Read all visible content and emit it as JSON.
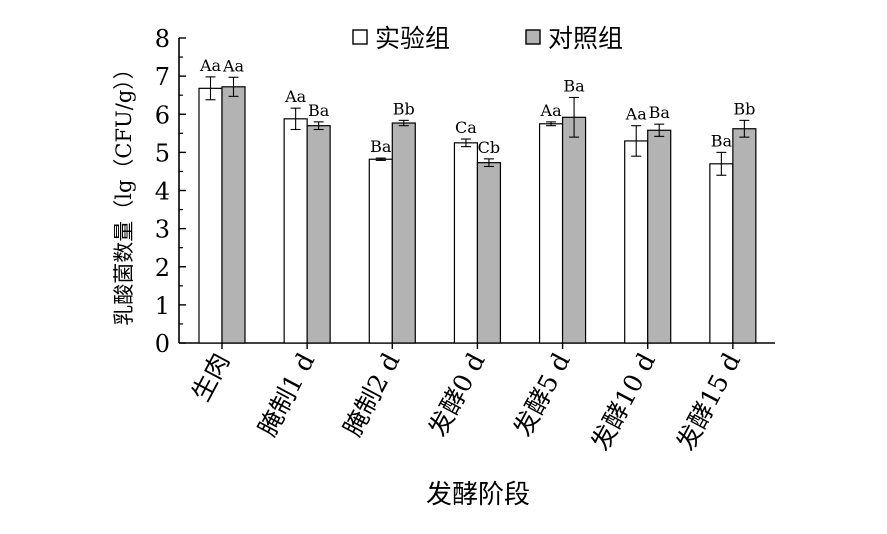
{
  "chart_data": {
    "type": "bar",
    "title": "",
    "xlabel": "发酵阶段",
    "ylabel": "乳酸菌数量（lg（CFU/g））",
    "ylim": [
      0,
      8
    ],
    "yticks": [
      "0",
      "1",
      "2",
      "3",
      "4",
      "5",
      "6",
      "7",
      "8"
    ],
    "categories": [
      "生肉",
      "腌制1 d",
      "腌制2 d",
      "发酵0 d",
      "发酵5 d",
      "发酵10 d",
      "发酵15 d"
    ],
    "legend_position": "top",
    "grid": false,
    "series": [
      {
        "name": "实验组",
        "color": "#ffffff",
        "values": [
          6.68,
          5.88,
          4.82,
          5.25,
          5.75,
          5.3,
          4.7
        ],
        "errors": [
          0.3,
          0.28,
          0.03,
          0.1,
          0.05,
          0.4,
          0.3
        ],
        "labels": [
          "Aa",
          "Aa",
          "Ba",
          "Ca",
          "Aa",
          "Aa",
          "Ba"
        ]
      },
      {
        "name": "对照组",
        "color": "#b3b3b3",
        "values": [
          6.72,
          5.7,
          5.77,
          4.73,
          5.92,
          5.58,
          5.62
        ],
        "errors": [
          0.25,
          0.1,
          0.07,
          0.1,
          0.52,
          0.16,
          0.22
        ],
        "labels": [
          "Aa",
          "Ba",
          "Bb",
          "Cb",
          "Ba",
          "Ba",
          "Bb"
        ]
      }
    ]
  }
}
